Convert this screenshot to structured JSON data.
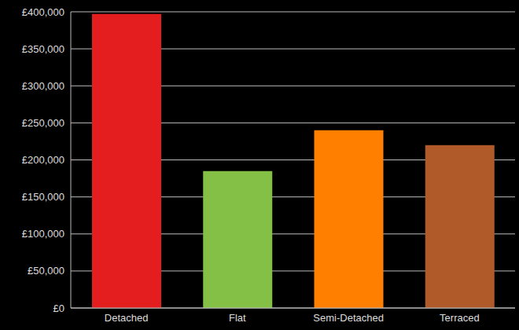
{
  "chart_data": {
    "type": "bar",
    "categories": [
      "Detached",
      "Flat",
      "Semi-Detached",
      "Terraced"
    ],
    "values": [
      397000,
      185000,
      240000,
      220000
    ],
    "colors": [
      "#e41e1e",
      "#84c045",
      "#ff7f00",
      "#b05a2a"
    ],
    "ylim": [
      0,
      400000
    ],
    "yticks": [
      {
        "value": 0,
        "label": "£0"
      },
      {
        "value": 50000,
        "label": "£50,000"
      },
      {
        "value": 100000,
        "label": "£100,000"
      },
      {
        "value": 150000,
        "label": "£150,000"
      },
      {
        "value": 200000,
        "label": "£200,000"
      },
      {
        "value": 250000,
        "label": "£250,000"
      },
      {
        "value": 300000,
        "label": "£300,000"
      },
      {
        "value": 350000,
        "label": "£350,000"
      },
      {
        "value": 400000,
        "label": "£400,000"
      }
    ],
    "grid": true
  }
}
